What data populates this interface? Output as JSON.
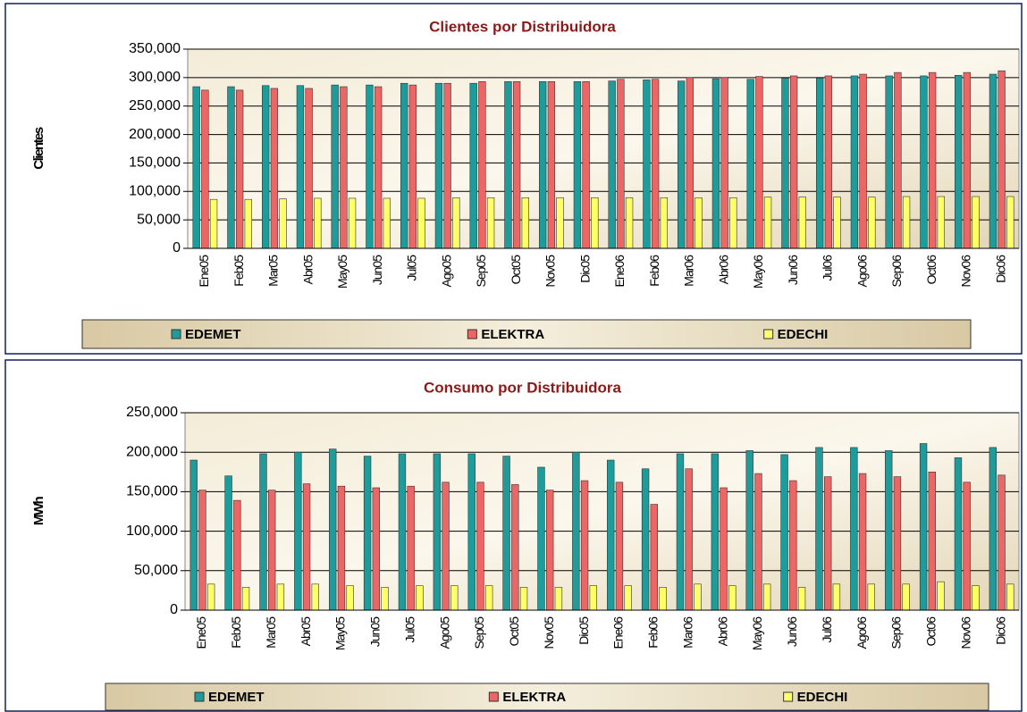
{
  "chart_data": [
    {
      "type": "bar",
      "title": "Clientes por Distribuidora",
      "y_label": "Clientes",
      "categories": [
        "Ene05",
        "Feb05",
        "Mar05",
        "Abr05",
        "May05",
        "Jun05",
        "Jul05",
        "Ago05",
        "Sep05",
        "Oct05",
        "Nov05",
        "Dic05",
        "Ene06",
        "Feb06",
        "Mar06",
        "Abr06",
        "May06",
        "Jun06",
        "Jul06",
        "Ago06",
        "Sep06",
        "Oct06",
        "Nov06",
        "Dic06"
      ],
      "series": [
        {
          "name": "EDEMET",
          "color": "#1e9c9c",
          "values": [
            284000,
            284000,
            286000,
            286000,
            287000,
            287000,
            290000,
            290000,
            290000,
            293000,
            293000,
            293000,
            294000,
            296000,
            294000,
            298000,
            297000,
            299000,
            299000,
            303000,
            303000,
            303000,
            304000,
            306000
          ]
        },
        {
          "name": "ELEKTRA",
          "color": "#ec6666",
          "values": [
            278000,
            278000,
            281000,
            281000,
            284000,
            284000,
            287000,
            290000,
            293000,
            293000,
            293000,
            293000,
            297000,
            297000,
            300000,
            300000,
            302000,
            303000,
            303000,
            306000,
            309000,
            309000,
            309000,
            312000
          ]
        },
        {
          "name": "EDECHI",
          "color": "#ffff66",
          "values": [
            86000,
            86000,
            87000,
            88000,
            88000,
            88000,
            88000,
            89000,
            89000,
            89000,
            89000,
            89000,
            89000,
            89000,
            89000,
            89000,
            90000,
            90000,
            90000,
            90000,
            91000,
            91000,
            91000,
            91000
          ]
        }
      ],
      "ylim": [
        0,
        350000
      ],
      "yticks": [
        0,
        {
          "value": 50000,
          "label": "50,000"
        },
        {
          "value": 100000,
          "label": "100,000"
        },
        {
          "value": 150000,
          "label": "150,000"
        },
        {
          "value": 200000,
          "label": "200,000"
        },
        {
          "value": 250000,
          "label": "250,000"
        },
        {
          "value": 300000,
          "label": "300,000"
        },
        {
          "value": 350000,
          "label": "350,000"
        }
      ],
      "grid": true,
      "legend": "bottom"
    },
    {
      "type": "bar",
      "title": "Consumo por Distribuidora",
      "y_label": "MWh",
      "categories": [
        "Ene05",
        "Feb05",
        "Mar05",
        "Abr05",
        "May05",
        "Jun05",
        "Jul05",
        "Ago05",
        "Sep05",
        "Oct05",
        "Nov05",
        "Dic05",
        "Ene06",
        "Feb06",
        "Mar06",
        "Abr06",
        "May06",
        "Jun06",
        "Jul06",
        "Ago06",
        "Sep06",
        "Oct06",
        "Nov06",
        "Dic06"
      ],
      "series": [
        {
          "name": "EDEMET",
          "color": "#1e9c9c",
          "values": [
            190000,
            170000,
            198000,
            200000,
            204000,
            195000,
            198000,
            198000,
            198000,
            195000,
            181000,
            200000,
            190000,
            179000,
            198000,
            198000,
            202000,
            197000,
            206000,
            206000,
            202000,
            211000,
            193000,
            206000
          ]
        },
        {
          "name": "ELEKTRA",
          "color": "#ec6666",
          "values": [
            152000,
            139000,
            152000,
            160000,
            157000,
            155000,
            157000,
            162000,
            162000,
            159000,
            152000,
            164000,
            162000,
            134000,
            179000,
            155000,
            173000,
            164000,
            169000,
            173000,
            169000,
            175000,
            162000,
            171000
          ]
        },
        {
          "name": "EDECHI",
          "color": "#ffff66",
          "values": [
            33000,
            29000,
            33000,
            33000,
            31000,
            29000,
            31000,
            31000,
            31000,
            29000,
            29000,
            31000,
            31000,
            29000,
            33000,
            31000,
            33000,
            29000,
            33000,
            33000,
            33000,
            36000,
            31000,
            33000
          ]
        }
      ],
      "ylim": [
        0,
        250000
      ],
      "yticks": [
        0,
        {
          "value": 50000,
          "label": "50,000"
        },
        {
          "value": 100000,
          "label": "100,000"
        },
        {
          "value": 150000,
          "label": "150,000"
        },
        {
          "value": 200000,
          "label": "200,000"
        },
        {
          "value": 250000,
          "label": "250,000"
        }
      ],
      "grid": true,
      "legend": "bottom"
    }
  ]
}
